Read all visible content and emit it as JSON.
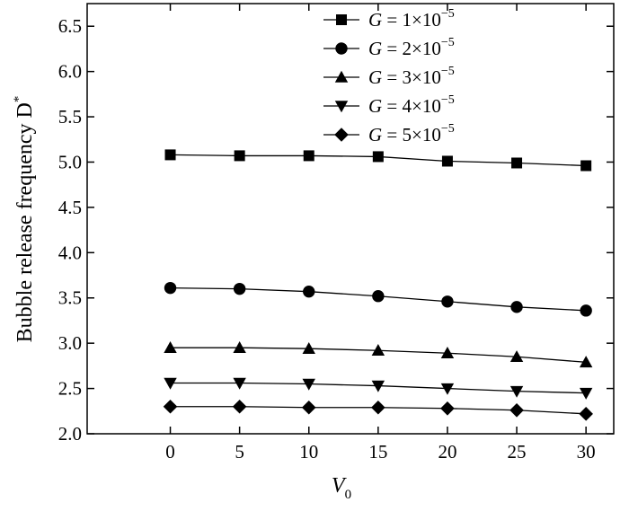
{
  "chart_data": {
    "type": "line",
    "xlabel": "V",
    "xlabel_sub": "0",
    "ylabel": "Bubble release frequency D",
    "ylabel_sup": "*",
    "xlim": [
      -6,
      32
    ],
    "ylim": [
      2.0,
      6.75
    ],
    "x_ticks": [
      0,
      5,
      10,
      15,
      20,
      25,
      30
    ],
    "y_ticks": [
      2.0,
      2.5,
      3.0,
      3.5,
      4.0,
      4.5,
      5.0,
      5.5,
      6.0,
      6.5
    ],
    "grid": false,
    "legend_position": "top-right",
    "x": [
      0,
      5,
      10,
      15,
      20,
      25,
      30
    ],
    "series": [
      {
        "name": "G = 1×10",
        "exponent": "−5",
        "marker": "square",
        "values": [
          5.08,
          5.07,
          5.07,
          5.06,
          5.01,
          4.99,
          4.96
        ]
      },
      {
        "name": "G = 2×10",
        "exponent": "−5",
        "marker": "circle",
        "values": [
          3.61,
          3.6,
          3.57,
          3.52,
          3.46,
          3.4,
          3.36
        ]
      },
      {
        "name": "G = 3×10",
        "exponent": "−5",
        "marker": "triangle-up",
        "values": [
          2.95,
          2.95,
          2.94,
          2.92,
          2.89,
          2.85,
          2.79
        ]
      },
      {
        "name": "G = 4×10",
        "exponent": "−5",
        "marker": "triangle-down",
        "values": [
          2.56,
          2.56,
          2.55,
          2.53,
          2.5,
          2.47,
          2.45
        ]
      },
      {
        "name": "G = 5×10",
        "exponent": "−5",
        "marker": "diamond",
        "values": [
          2.3,
          2.3,
          2.29,
          2.29,
          2.28,
          2.26,
          2.22
        ]
      }
    ]
  }
}
